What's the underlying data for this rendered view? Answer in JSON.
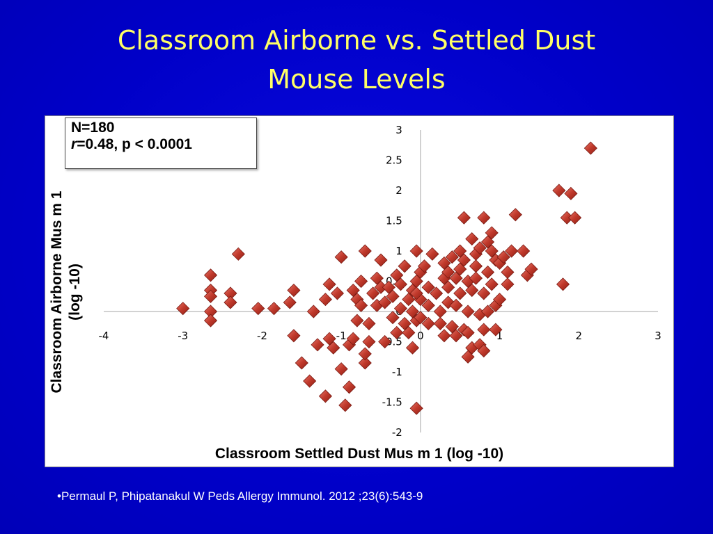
{
  "slide": {
    "title_line1": "Classroom Airborne vs. Settled Dust",
    "title_line2": "Mouse Levels",
    "citation": "•Permaul P, Phipatanakul  W Peds Allergy Immunol. 2012 ;23(6):543-9"
  },
  "colors": {
    "background": "#0000CC",
    "title": "#FFFF66",
    "marker": "#C0392B"
  },
  "chart_data": {
    "type": "scatter",
    "title": "",
    "xlabel": "Classroom Settled Dust Mus m 1 (log -10)",
    "ylabel": "Classroom Airborne Mus m 1 (log -10)",
    "ylabel_line1": "Classroom Airborne Mus m 1",
    "ylabel_line2": "(log -10)",
    "annotation_n": "N=180",
    "annotation_r_var": "r",
    "annotation_r_rest": "=0.48,  p < 0.0001",
    "xlim": [
      -4,
      3
    ],
    "ylim": [
      -2,
      3
    ],
    "x_ticks": [
      "-4",
      "-3",
      "-2",
      "-1",
      "0",
      "1",
      "2",
      "3"
    ],
    "y_ticks": [
      "3",
      "2.5",
      "2",
      "1.5",
      "1",
      "0.5",
      "0",
      "-0.5",
      "-1",
      "-1.5",
      "-2"
    ],
    "grid": false,
    "marker": "diamond",
    "points": [
      [
        -3.0,
        0.05
      ],
      [
        -2.65,
        0.6
      ],
      [
        -2.65,
        0.35
      ],
      [
        -2.65,
        0.25
      ],
      [
        -2.65,
        0.0
      ],
      [
        -2.65,
        -0.15
      ],
      [
        -2.4,
        0.3
      ],
      [
        -2.4,
        0.15
      ],
      [
        -2.3,
        0.95
      ],
      [
        -2.05,
        0.05
      ],
      [
        -1.85,
        0.05
      ],
      [
        -1.65,
        0.15
      ],
      [
        -1.6,
        0.35
      ],
      [
        -1.6,
        -0.4
      ],
      [
        -1.5,
        -0.85
      ],
      [
        -1.4,
        -1.15
      ],
      [
        -1.35,
        0.0
      ],
      [
        -1.3,
        -0.55
      ],
      [
        -1.2,
        -1.4
      ],
      [
        -1.2,
        0.2
      ],
      [
        -1.15,
        0.45
      ],
      [
        -1.15,
        -0.45
      ],
      [
        -1.1,
        -0.6
      ],
      [
        -1.05,
        0.3
      ],
      [
        -1.0,
        0.9
      ],
      [
        -1.0,
        -0.95
      ],
      [
        -0.95,
        -1.55
      ],
      [
        -0.9,
        -1.25
      ],
      [
        -0.9,
        -0.55
      ],
      [
        -0.85,
        0.35
      ],
      [
        -0.85,
        -0.45
      ],
      [
        -0.8,
        0.2
      ],
      [
        -0.8,
        -0.15
      ],
      [
        -0.75,
        0.5
      ],
      [
        -0.75,
        0.1
      ],
      [
        -0.7,
        -0.85
      ],
      [
        -0.7,
        -0.7
      ],
      [
        -0.7,
        1.0
      ],
      [
        -0.65,
        -0.2
      ],
      [
        -0.65,
        -0.5
      ],
      [
        -0.6,
        0.3
      ],
      [
        -0.55,
        0.55
      ],
      [
        -0.55,
        0.1
      ],
      [
        -0.5,
        0.85
      ],
      [
        -0.5,
        0.4
      ],
      [
        -0.45,
        -0.5
      ],
      [
        -0.45,
        0.15
      ],
      [
        -0.4,
        0.4
      ],
      [
        -0.35,
        -0.1
      ],
      [
        -0.35,
        0.25
      ],
      [
        -0.3,
        0.6
      ],
      [
        -0.3,
        -0.35
      ],
      [
        -0.25,
        0.05
      ],
      [
        -0.25,
        0.45
      ],
      [
        -0.2,
        0.75
      ],
      [
        -0.2,
        -0.2
      ],
      [
        -0.15,
        0.2
      ],
      [
        -0.15,
        -0.35
      ],
      [
        -0.1,
        0.35
      ],
      [
        -0.1,
        0.0
      ],
      [
        -0.1,
        -0.6
      ],
      [
        -0.05,
        0.5
      ],
      [
        -0.05,
        -0.15
      ],
      [
        -0.05,
        1.0
      ],
      [
        -0.05,
        -1.6
      ],
      [
        0.0,
        0.65
      ],
      [
        0.0,
        0.2
      ],
      [
        0.05,
        0.75
      ],
      [
        0.0,
        -0.1
      ],
      [
        -0.05,
        0.3
      ],
      [
        0.1,
        0.4
      ],
      [
        0.1,
        0.1
      ],
      [
        0.1,
        -0.2
      ],
      [
        0.15,
        0.95
      ],
      [
        0.2,
        0.3
      ],
      [
        0.25,
        -0.2
      ],
      [
        0.25,
        0.0
      ],
      [
        0.3,
        0.55
      ],
      [
        0.3,
        0.8
      ],
      [
        0.3,
        -0.4
      ],
      [
        0.35,
        0.65
      ],
      [
        0.35,
        0.4
      ],
      [
        0.35,
        0.15
      ],
      [
        0.4,
        -0.25
      ],
      [
        0.4,
        0.9
      ],
      [
        0.45,
        -0.4
      ],
      [
        0.45,
        0.55
      ],
      [
        0.45,
        0.1
      ],
      [
        0.5,
        1.0
      ],
      [
        0.5,
        0.7
      ],
      [
        0.5,
        0.3
      ],
      [
        0.55,
        -0.3
      ],
      [
        0.55,
        0.85
      ],
      [
        0.6,
        0.5
      ],
      [
        0.6,
        0.0
      ],
      [
        0.65,
        0.35
      ],
      [
        0.65,
        1.2
      ],
      [
        0.65,
        -0.6
      ],
      [
        0.7,
        0.95
      ],
      [
        0.7,
        0.75
      ],
      [
        0.7,
        0.55
      ],
      [
        0.75,
        1.05
      ],
      [
        0.75,
        -0.05
      ],
      [
        0.8,
        0.3
      ],
      [
        0.8,
        -0.3
      ],
      [
        0.85,
        1.15
      ],
      [
        0.85,
        0.65
      ],
      [
        0.9,
        1.0
      ],
      [
        0.9,
        0.45
      ],
      [
        0.95,
        -0.3
      ],
      [
        0.95,
        0.1
      ],
      [
        0.6,
        -0.35
      ],
      [
        0.55,
        1.55
      ],
      [
        0.6,
        -0.75
      ],
      [
        0.75,
        -0.55
      ],
      [
        0.8,
        -0.65
      ],
      [
        0.8,
        1.55
      ],
      [
        0.85,
        0.0
      ],
      [
        0.9,
        1.3
      ],
      [
        0.95,
        0.85
      ],
      [
        1.0,
        0.8
      ],
      [
        1.0,
        0.2
      ],
      [
        1.05,
        0.9
      ],
      [
        1.1,
        0.45
      ],
      [
        1.1,
        0.65
      ],
      [
        1.15,
        1.0
      ],
      [
        1.2,
        1.6
      ],
      [
        1.3,
        1.0
      ],
      [
        1.35,
        0.6
      ],
      [
        1.4,
        0.7
      ],
      [
        1.75,
        2.0
      ],
      [
        1.8,
        0.45
      ],
      [
        1.85,
        1.55
      ],
      [
        1.9,
        1.95
      ],
      [
        1.95,
        1.55
      ],
      [
        2.15,
        2.7
      ]
    ]
  }
}
